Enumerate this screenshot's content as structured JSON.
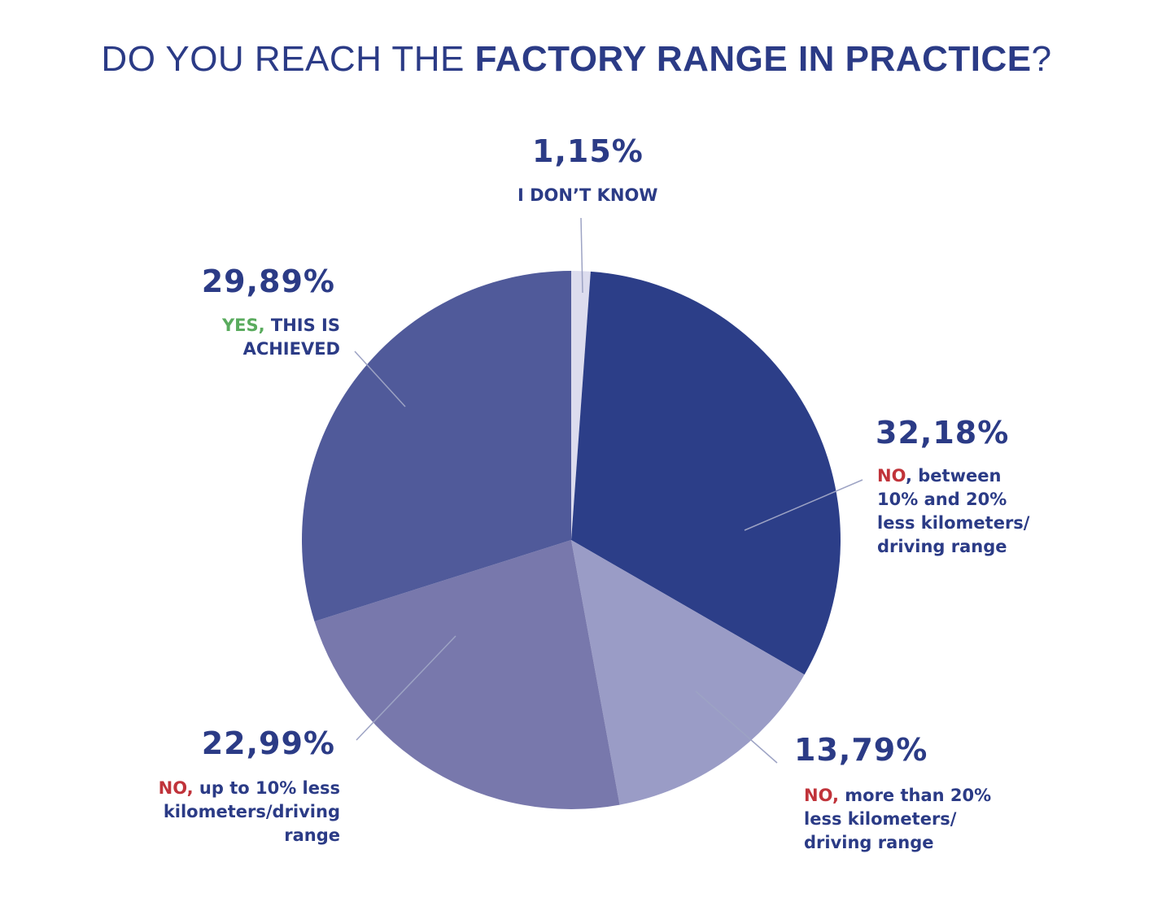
{
  "title": {
    "light": "DO YOU REACH THE ",
    "bold": "FACTORY RANGE IN PRACTICE",
    "end": "?"
  },
  "colors": {
    "title": "#2b3b86",
    "no": "#c0333a",
    "yes": "#5aab5e"
  },
  "slices": [
    {
      "pct": "1,15%",
      "lead": "",
      "text": "I DON’T KNOW",
      "color": "#dcdcee"
    },
    {
      "pct": "32,18%",
      "lead": "NO",
      "text": ", between 10% and 20% less kilometers/ driving range",
      "color": "#2c3e88"
    },
    {
      "pct": "13,79%",
      "lead": "NO,",
      "text": " more than 20% less kilometers/ driving range",
      "color": "#9a9cc6"
    },
    {
      "pct": "22,99%",
      "lead": "NO,",
      "text": " up to 10% less kilometers/driving range",
      "color": "#7878ac"
    },
    {
      "pct": "29,89%",
      "lead": "YES,",
      "text": " THIS IS ACHIEVED",
      "color": "#505a9a"
    }
  ],
  "chart_data": {
    "type": "pie",
    "title": "DO YOU REACH THE FACTORY RANGE IN PRACTICE?",
    "categories": [
      "I DON'T KNOW",
      "NO, between 10% and 20% less kilometers/driving range",
      "NO, more than 20% less kilometers/driving range",
      "NO, up to 10% less kilometers/driving range",
      "YES, THIS IS ACHIEVED"
    ],
    "values": [
      1.15,
      32.18,
      13.79,
      22.99,
      29.89
    ],
    "colors": [
      "#dcdcee",
      "#2c3e88",
      "#9a9cc6",
      "#7878ac",
      "#505a9a"
    ],
    "start_angle": "12 o'clock, clockwise",
    "legend": "none (callout labels)"
  }
}
